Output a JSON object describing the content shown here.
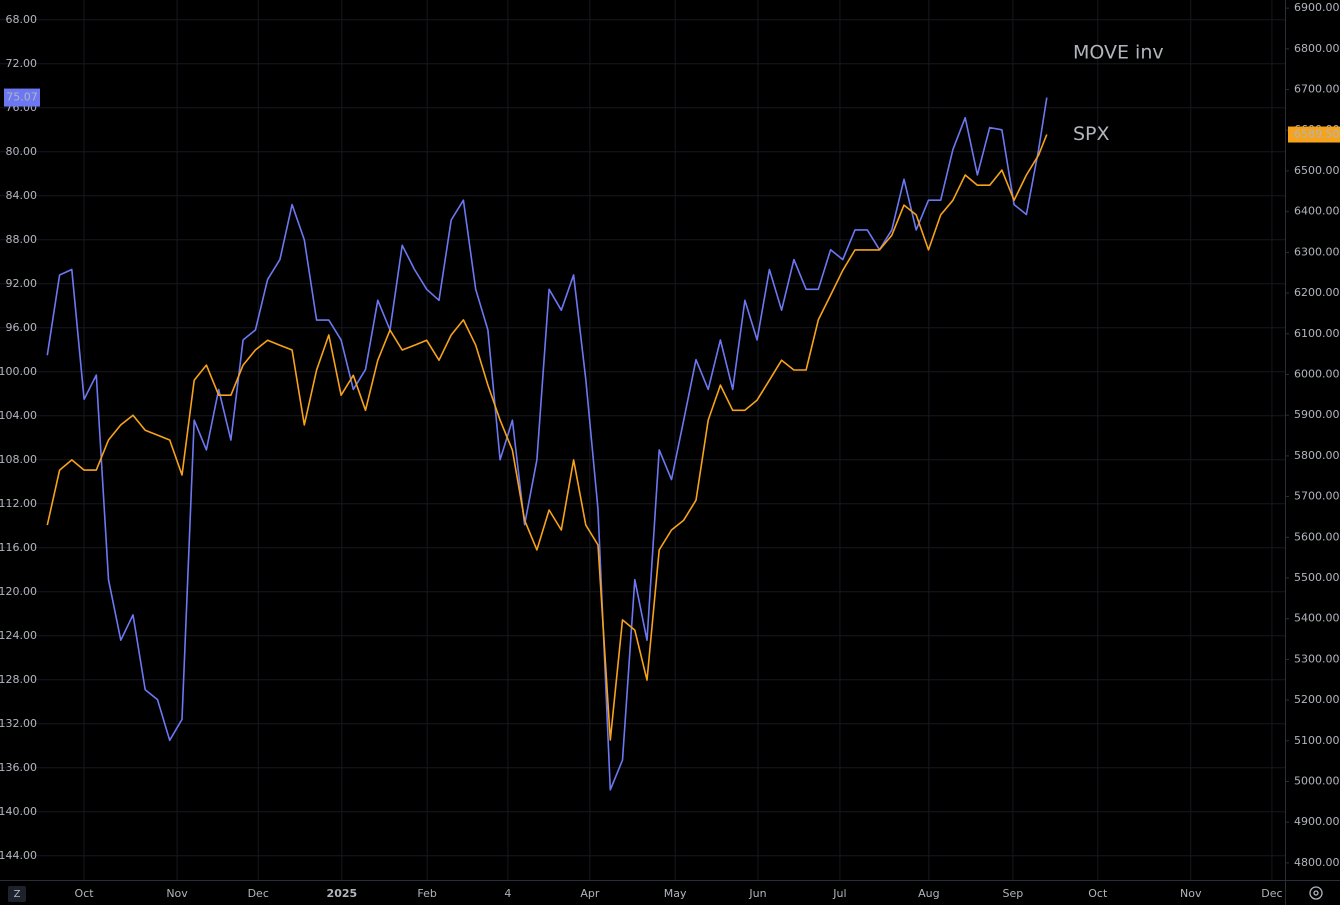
{
  "chart_data": {
    "type": "line",
    "label_color": "#f7a21b",
    "x": [
      -9,
      -6,
      -3,
      0,
      3,
      6,
      9,
      12,
      15,
      18,
      21,
      24,
      27,
      30,
      33,
      36,
      39,
      42,
      45,
      48,
      51,
      54,
      57,
      60,
      63,
      66,
      69,
      72,
      75,
      78,
      81,
      84,
      87,
      90,
      93,
      96,
      99,
      102,
      105,
      108,
      111,
      114,
      117,
      120,
      123,
      126,
      129,
      132,
      135,
      138,
      141,
      144,
      147,
      150,
      153,
      156,
      159,
      162,
      165,
      168,
      171,
      174,
      177,
      180,
      183,
      186,
      189,
      192,
      195,
      198,
      201,
      204,
      207,
      210,
      213,
      216,
      219,
      222,
      225,
      228,
      231,
      234,
      236
    ],
    "xlim": [
      -10.8,
      294.4
    ],
    "xticks": [
      {
        "value": 0,
        "label": "Oct"
      },
      {
        "value": 22.8,
        "label": "Nov"
      },
      {
        "value": 42.7,
        "label": "Dec"
      },
      {
        "value": 63.2,
        "label": "2025"
      },
      {
        "value": 84.1,
        "label": "Feb"
      },
      {
        "value": 103.9,
        "label": "4"
      },
      {
        "value": 124,
        "label": "Apr"
      },
      {
        "value": 144.9,
        "label": "May"
      },
      {
        "value": 165.2,
        "label": "Jun"
      },
      {
        "value": 185.3,
        "label": "Jul"
      },
      {
        "value": 207.1,
        "label": "Aug"
      },
      {
        "value": 227.7,
        "label": "Sep"
      },
      {
        "value": 248.5,
        "label": "Oct"
      },
      {
        "value": 271.3,
        "label": "Nov"
      },
      {
        "value": 291.2,
        "label": "Dec"
      }
    ],
    "ylim": [
      66.2,
      146.2
    ],
    "y_inverted": true,
    "yticks": [
      {
        "value": 68,
        "label": "68.00"
      },
      {
        "value": 72,
        "label": "72.00"
      },
      {
        "value": 76,
        "label": "76.00"
      },
      {
        "value": 80,
        "label": "80.00"
      },
      {
        "value": 84,
        "label": "84.00"
      },
      {
        "value": 88,
        "label": "88.00"
      },
      {
        "value": 92,
        "label": "92.00"
      },
      {
        "value": 96,
        "label": "96.00"
      },
      {
        "value": 100,
        "label": "100.00"
      },
      {
        "value": 104,
        "label": "104.00"
      },
      {
        "value": 108,
        "label": "108.00"
      },
      {
        "value": 112,
        "label": "112.00"
      },
      {
        "value": 116,
        "label": "116.00"
      },
      {
        "value": 120,
        "label": "120.00"
      },
      {
        "value": 124,
        "label": "124.00"
      },
      {
        "value": 128,
        "label": "128.00"
      },
      {
        "value": 132,
        "label": "132.00"
      },
      {
        "value": 136,
        "label": "136.00"
      },
      {
        "value": 140,
        "label": "140.00"
      },
      {
        "value": 144,
        "label": "144.00"
      }
    ],
    "y2lim": [
      4758,
      6920
    ],
    "y2ticks": [
      {
        "value": 4800,
        "label": "4800.00"
      },
      {
        "value": 4900,
        "label": "4900.00"
      },
      {
        "value": 5000,
        "label": "5000.00"
      },
      {
        "value": 5100,
        "label": "5100.00"
      },
      {
        "value": 5200,
        "label": "5200.00"
      },
      {
        "value": 5300,
        "label": "5300.00"
      },
      {
        "value": 5400,
        "label": "5400.00"
      },
      {
        "value": 5500,
        "label": "5500.00"
      },
      {
        "value": 5600,
        "label": "5600.00"
      },
      {
        "value": 5700,
        "label": "5700.00"
      },
      {
        "value": 5800,
        "label": "5800.00"
      },
      {
        "value": 5900,
        "label": "5900.00"
      },
      {
        "value": 6000,
        "label": "6000.00"
      },
      {
        "value": 6100,
        "label": "6100.00"
      },
      {
        "value": 6200,
        "label": "6200.00"
      },
      {
        "value": 6300,
        "label": "6300.00"
      },
      {
        "value": 6400,
        "label": "6400.00"
      },
      {
        "value": 6500,
        "label": "6500.00"
      },
      {
        "value": 6600,
        "label": "6600.00"
      },
      {
        "value": 6700,
        "label": "6700.00"
      },
      {
        "value": 6800,
        "label": "6800.00"
      },
      {
        "value": 6900,
        "label": "6900.00"
      }
    ],
    "grid": true,
    "series": [
      {
        "name": "MOVE inv",
        "color": "#6c78f2",
        "axis": "y",
        "values": [
          98.5,
          91.2,
          90.7,
          102.5,
          100.3,
          118.9,
          124.4,
          122.1,
          128.9,
          129.8,
          133.5,
          131.6,
          104.4,
          107.1,
          101.6,
          106.2,
          97.1,
          96.2,
          91.6,
          89.8,
          84.8,
          88.0,
          95.3,
          95.3,
          97.1,
          101.6,
          99.8,
          93.5,
          96.2,
          88.5,
          90.7,
          92.5,
          93.5,
          86.2,
          84.4,
          92.5,
          96.2,
          108.0,
          104.4,
          113.9,
          108.0,
          92.5,
          94.4,
          91.2,
          100.7,
          112.5,
          138.0,
          135.3,
          118.9,
          124.4,
          107.1,
          109.8,
          104.4,
          98.9,
          101.6,
          97.1,
          101.6,
          93.5,
          97.1,
          90.7,
          94.4,
          89.8,
          92.5,
          92.5,
          88.9,
          89.8,
          87.1,
          87.1,
          88.9,
          87.1,
          82.5,
          87.1,
          84.4,
          84.4,
          79.8,
          76.9,
          82.1,
          77.8,
          78.0,
          84.8,
          85.7,
          79.8,
          75.07
        ]
      },
      {
        "name": "SPX",
        "color": "#f7a21b",
        "axis": "y2",
        "values": [
          5630,
          5765,
          5790,
          5765,
          5765,
          5839,
          5876,
          5900,
          5863,
          5851,
          5839,
          5753,
          5986,
          6023,
          5949,
          5949,
          6023,
          6060,
          6084,
          6072,
          6060,
          5876,
          6011,
          6097,
          5949,
          5998,
          5912,
          6035,
          6109,
          6060,
          6072,
          6084,
          6035,
          6097,
          6134,
          6072,
          5974,
          5888,
          5814,
          5642,
          5569,
          5667,
          5618,
          5790,
          5630,
          5581,
          5102,
          5397,
          5372,
          5249,
          5569,
          5618,
          5642,
          5691,
          5888,
          5974,
          5912,
          5912,
          5937,
          5986,
          6035,
          6011,
          6011,
          6134,
          6195,
          6256,
          6306,
          6306,
          6306,
          6342,
          6416,
          6392,
          6306,
          6392,
          6428,
          6490,
          6465,
          6465,
          6502,
          6428,
          6490,
          6539,
          6589.5
        ],
        "last_value_label": "6589.50"
      }
    ]
  }
}
